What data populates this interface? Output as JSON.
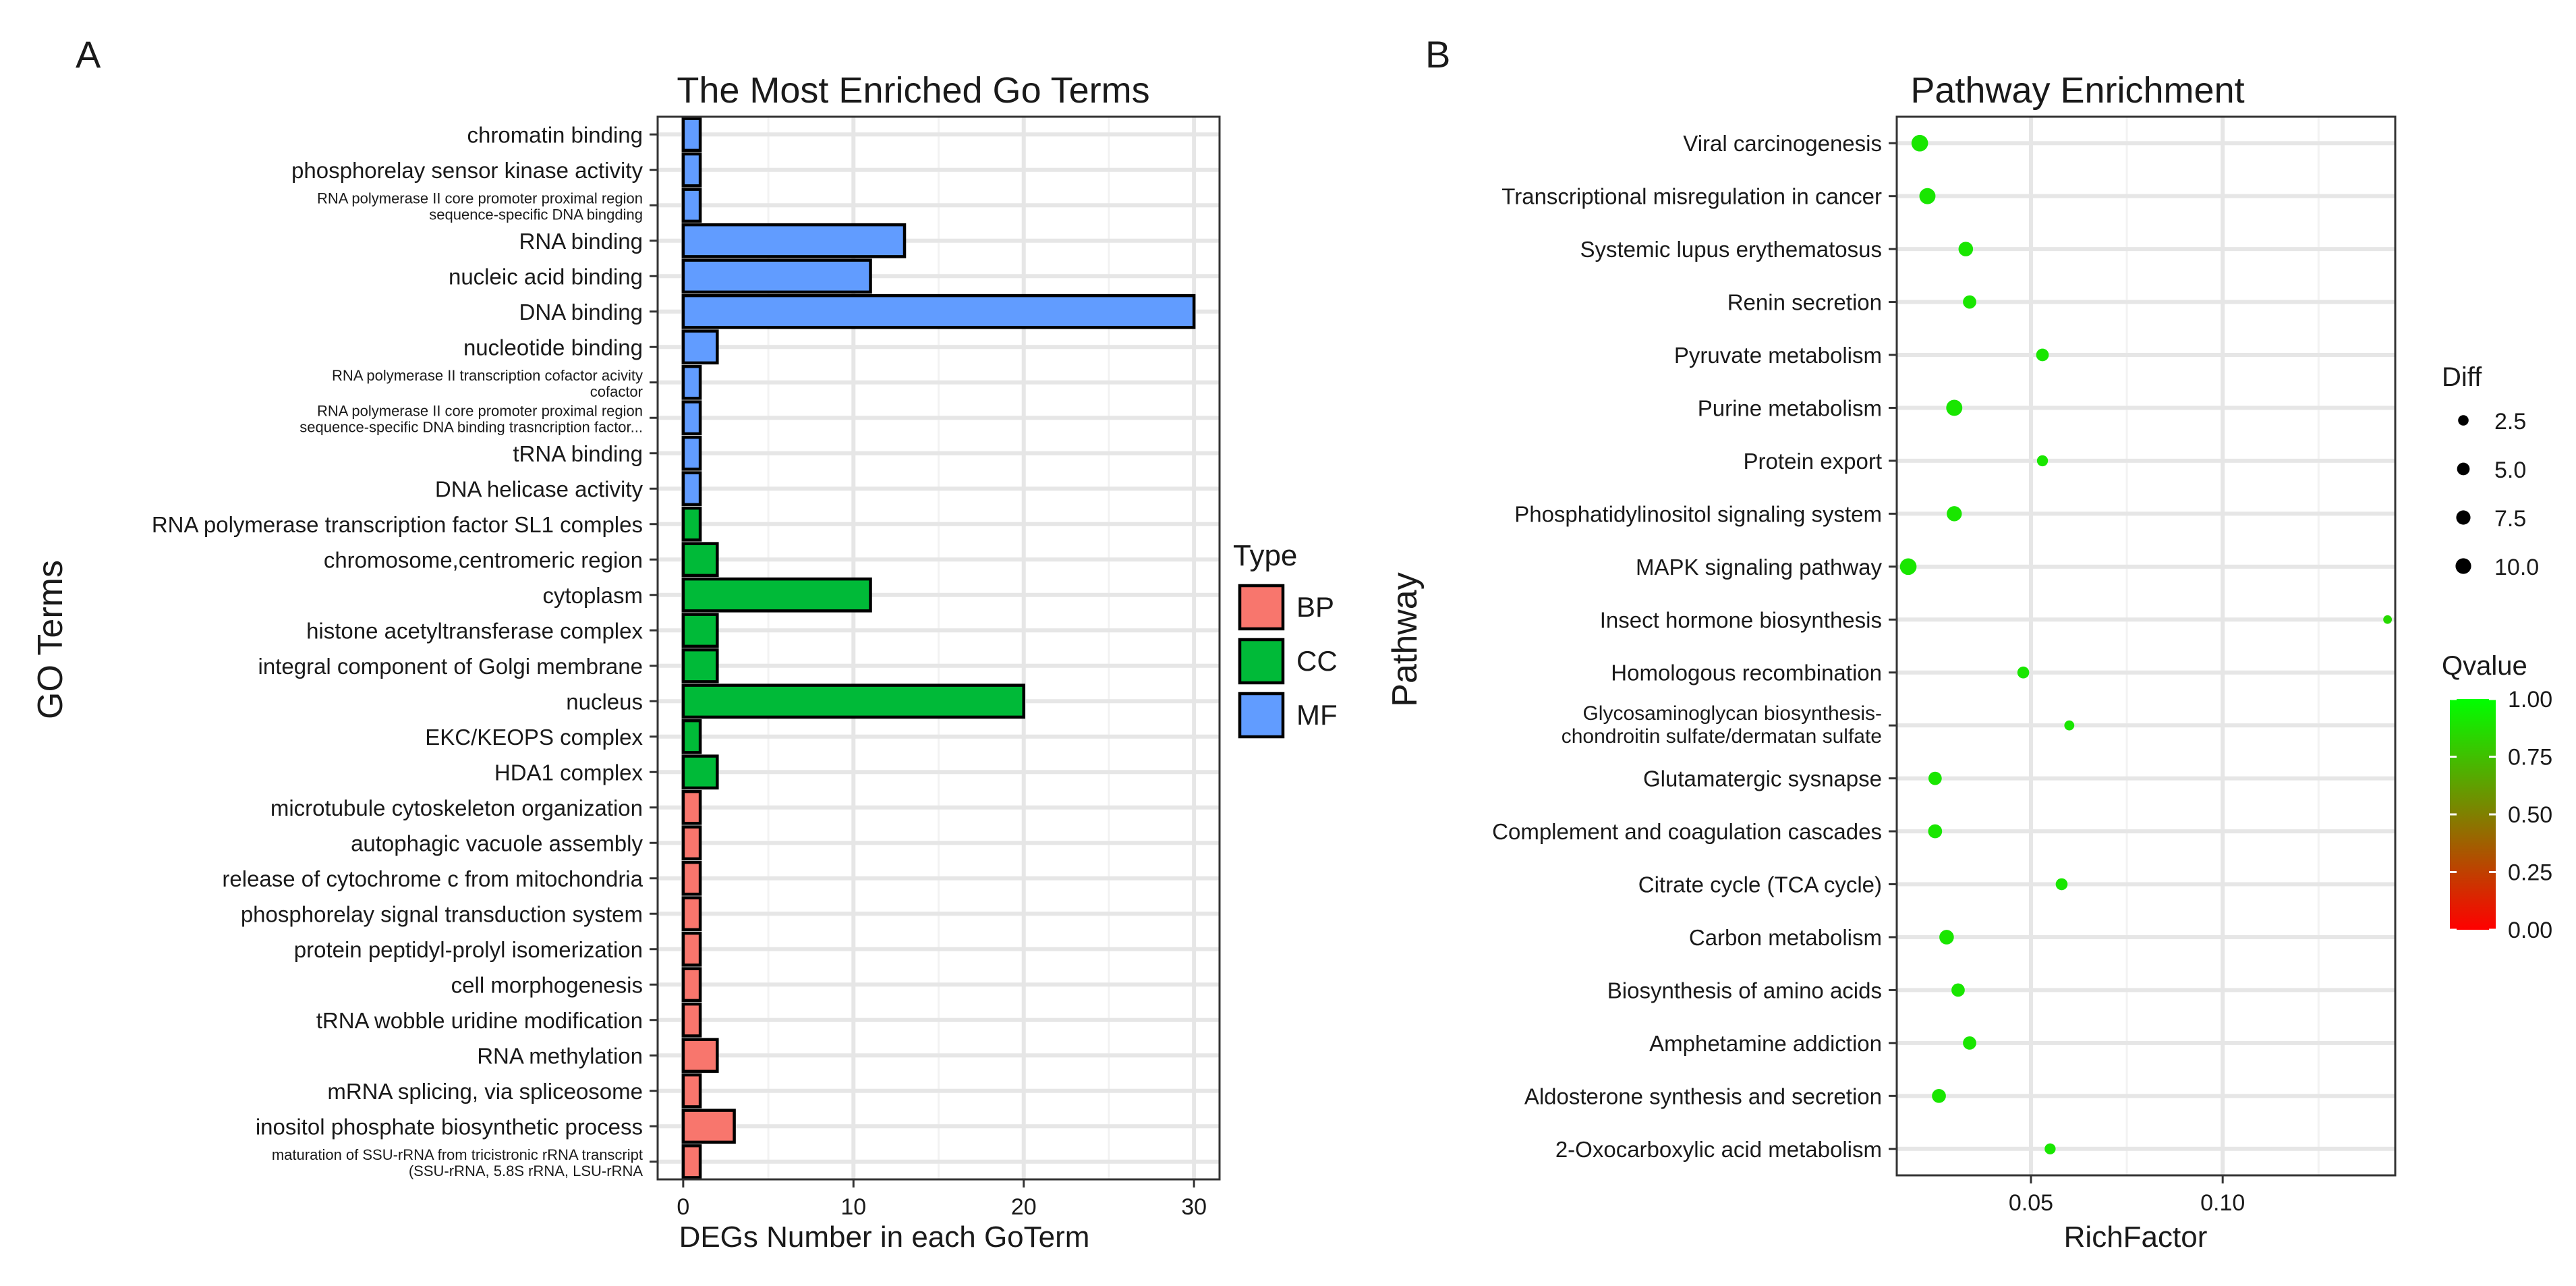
{
  "chart_data": [
    {
      "panel_label": "A",
      "type": "bar",
      "orientation": "horizontal",
      "title": "The Most Enriched Go Terms",
      "xlabel": "DEGs Number in each GoTerm",
      "ylabel": "GO Terms",
      "xlim": [
        -1.5,
        31.5
      ],
      "xticks": [
        0,
        10,
        20,
        30
      ],
      "grid": true,
      "legend": {
        "title": "Type",
        "position": "right",
        "entries": [
          {
            "label": "BP",
            "color": "#F8766D"
          },
          {
            "label": "CC",
            "color": "#00BA38"
          },
          {
            "label": "MF",
            "color": "#619CFF"
          }
        ]
      },
      "categories": [
        {
          "label": [
            "chromatin binding"
          ],
          "value": 1,
          "type": "MF"
        },
        {
          "label": [
            "phosphorelay sensor kinase activity"
          ],
          "value": 1,
          "type": "MF"
        },
        {
          "label": [
            "RNA polymerase II core promoter proximal region",
            "sequence-specific DNA bingding"
          ],
          "value": 1,
          "type": "MF"
        },
        {
          "label": [
            "RNA binding"
          ],
          "value": 13,
          "type": "MF"
        },
        {
          "label": [
            "nucleic acid binding"
          ],
          "value": 11,
          "type": "MF"
        },
        {
          "label": [
            "DNA binding"
          ],
          "value": 30,
          "type": "MF"
        },
        {
          "label": [
            "nucleotide binding"
          ],
          "value": 2,
          "type": "MF"
        },
        {
          "label": [
            "RNA polymerase II transcription cofactor acivity",
            "cofactor"
          ],
          "value": 1,
          "type": "MF"
        },
        {
          "label": [
            "RNA polymerase II core promoter proximal region",
            "sequence-specific DNA binding trasncription factor..."
          ],
          "value": 1,
          "type": "MF"
        },
        {
          "label": [
            "tRNA binding"
          ],
          "value": 1,
          "type": "MF"
        },
        {
          "label": [
            "DNA helicase activity"
          ],
          "value": 1,
          "type": "MF"
        },
        {
          "label": [
            "RNA polymerase transcription factor SL1 comples"
          ],
          "value": 1,
          "type": "CC"
        },
        {
          "label": [
            "chromosome,centromeric region"
          ],
          "value": 2,
          "type": "CC"
        },
        {
          "label": [
            "cytoplasm"
          ],
          "value": 11,
          "type": "CC"
        },
        {
          "label": [
            "histone acetyltransferase complex"
          ],
          "value": 2,
          "type": "CC"
        },
        {
          "label": [
            "integral component of Golgi membrane"
          ],
          "value": 2,
          "type": "CC"
        },
        {
          "label": [
            "nucleus"
          ],
          "value": 20,
          "type": "CC"
        },
        {
          "label": [
            "EKC/KEOPS complex"
          ],
          "value": 1,
          "type": "CC"
        },
        {
          "label": [
            "HDA1 complex"
          ],
          "value": 2,
          "type": "CC"
        },
        {
          "label": [
            "microtubule cytoskeleton organization"
          ],
          "value": 1,
          "type": "BP"
        },
        {
          "label": [
            "autophagic vacuole assembly"
          ],
          "value": 1,
          "type": "BP"
        },
        {
          "label": [
            "release of cytochrome c from mitochondria"
          ],
          "value": 1,
          "type": "BP"
        },
        {
          "label": [
            "phosphorelay signal transduction system"
          ],
          "value": 1,
          "type": "BP"
        },
        {
          "label": [
            "protein peptidyl-prolyl isomerization"
          ],
          "value": 1,
          "type": "BP"
        },
        {
          "label": [
            "cell morphogenesis"
          ],
          "value": 1,
          "type": "BP"
        },
        {
          "label": [
            "tRNA wobble uridine modification"
          ],
          "value": 1,
          "type": "BP"
        },
        {
          "label": [
            "RNA methylation"
          ],
          "value": 2,
          "type": "BP"
        },
        {
          "label": [
            "mRNA splicing, via spliceosome"
          ],
          "value": 1,
          "type": "BP"
        },
        {
          "label": [
            "inositol phosphate biosynthetic process"
          ],
          "value": 3,
          "type": "BP"
        },
        {
          "label": [
            "maturation of SSU-rRNA from tricistronic rRNA transcript",
            "(SSU-rRNA, 5.8S rRNA, LSU-rRNA"
          ],
          "value": 1,
          "type": "BP"
        }
      ]
    },
    {
      "panel_label": "B",
      "type": "scatter",
      "title": "Pathway Enrichment",
      "xlabel": "RichFactor",
      "ylabel": "Pathway",
      "xlim": [
        0.015,
        0.145
      ],
      "xticks": [
        0.05,
        0.1
      ],
      "xtick_labels": [
        "0.05",
        "0.10"
      ],
      "grid": true,
      "size_legend": {
        "title": "Diff",
        "position": "right",
        "values": [
          2.5,
          5.0,
          7.5,
          10.0
        ],
        "labels": [
          "2.5",
          "5.0",
          "7.5",
          "10.0"
        ]
      },
      "color_legend": {
        "title": "Qvalue",
        "position": "right",
        "range": [
          0.0,
          1.0
        ],
        "ticks": [
          "0.00",
          "0.25",
          "0.50",
          "0.75",
          "1.00"
        ],
        "low_color": "#FF0000",
        "high_color": "#00FF00"
      },
      "points": [
        {
          "pathway": [
            "Viral carcinogenesis"
          ],
          "richfactor": 0.021,
          "diff": 12,
          "qvalue": 0.9
        },
        {
          "pathway": [
            "Transcriptional misregulation in cancer"
          ],
          "richfactor": 0.023,
          "diff": 11,
          "qvalue": 0.9
        },
        {
          "pathway": [
            "Systemic lupus erythematosus"
          ],
          "richfactor": 0.033,
          "diff": 8,
          "qvalue": 0.9
        },
        {
          "pathway": [
            "Renin secretion"
          ],
          "richfactor": 0.034,
          "diff": 6,
          "qvalue": 0.9
        },
        {
          "pathway": [
            "Pyruvate metabolism"
          ],
          "richfactor": 0.053,
          "diff": 5,
          "qvalue": 0.9
        },
        {
          "pathway": [
            "Purine metabolism"
          ],
          "richfactor": 0.03,
          "diff": 11,
          "qvalue": 0.9
        },
        {
          "pathway": [
            "Protein export"
          ],
          "richfactor": 0.053,
          "diff": 3,
          "qvalue": 0.9
        },
        {
          "pathway": [
            "Phosphatidylinositol signaling system"
          ],
          "richfactor": 0.03,
          "diff": 9,
          "qvalue": 0.9
        },
        {
          "pathway": [
            "MAPK signaling pathway"
          ],
          "richfactor": 0.018,
          "diff": 12,
          "qvalue": 0.9
        },
        {
          "pathway": [
            "Insect hormone biosynthesis"
          ],
          "richfactor": 0.143,
          "diff": 1,
          "qvalue": 0.85
        },
        {
          "pathway": [
            "Homologous recombination"
          ],
          "richfactor": 0.048,
          "diff": 4,
          "qvalue": 0.9
        },
        {
          "pathway": [
            "Glycosaminoglycan biosynthesis-",
            "chondroitin sulfate/dermatan sulfate"
          ],
          "richfactor": 0.06,
          "diff": 2,
          "qvalue": 0.9
        },
        {
          "pathway": [
            "Glutamatergic sysnapse"
          ],
          "richfactor": 0.025,
          "diff": 6,
          "qvalue": 0.9
        },
        {
          "pathway": [
            "Complement and coagulation cascades"
          ],
          "richfactor": 0.025,
          "diff": 7,
          "qvalue": 0.9
        },
        {
          "pathway": [
            "Citrate cycle (TCA cycle)"
          ],
          "richfactor": 0.058,
          "diff": 4,
          "qvalue": 0.9
        },
        {
          "pathway": [
            "Carbon metabolism"
          ],
          "richfactor": 0.028,
          "diff": 8,
          "qvalue": 0.9
        },
        {
          "pathway": [
            "Biosynthesis of amino acids"
          ],
          "richfactor": 0.031,
          "diff": 6,
          "qvalue": 0.9
        },
        {
          "pathway": [
            "Amphetamine addiction"
          ],
          "richfactor": 0.034,
          "diff": 6,
          "qvalue": 0.9
        },
        {
          "pathway": [
            "Aldosterone synthesis and secretion"
          ],
          "richfactor": 0.026,
          "diff": 7,
          "qvalue": 0.9
        },
        {
          "pathway": [
            "2-Oxocarboxylic acid metabolism"
          ],
          "richfactor": 0.055,
          "diff": 3,
          "qvalue": 0.9
        }
      ]
    }
  ]
}
